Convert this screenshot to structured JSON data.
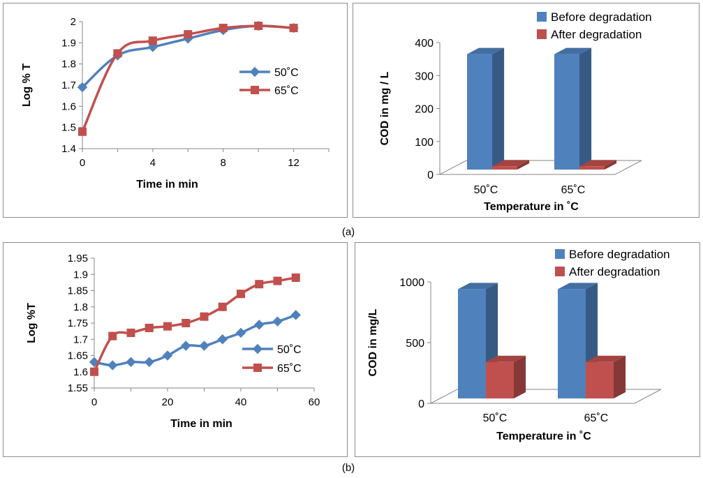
{
  "captions": {
    "a": "(a)",
    "b": "(b)"
  },
  "colors": {
    "blue": "#4f81bd",
    "blue_dark": "#385d8a",
    "red": "#c0504d",
    "red_dark": "#8c3836",
    "axis": "#868686",
    "floor_fill": "#ffffff"
  },
  "chart_data": [
    {
      "id": "a-line",
      "type": "line",
      "title": "",
      "xlabel": "Time in min",
      "ylabel": "Log % T",
      "xlim": [
        0,
        14
      ],
      "ylim": [
        1.4,
        2.0
      ],
      "x_ticks": [
        "0",
        "4",
        "8",
        "12"
      ],
      "x_tick_values": [
        0,
        4,
        8,
        12
      ],
      "y_ticks": [
        "1.4",
        "1.5",
        "1.6",
        "1.7",
        "1.8",
        "1.9",
        "2"
      ],
      "y_tick_values": [
        1.4,
        1.5,
        1.6,
        1.7,
        1.8,
        1.9,
        2.0
      ],
      "legend": "center-right",
      "grid": false,
      "series": [
        {
          "name": "50˚C",
          "color": "#4f81bd",
          "marker": "diamond",
          "x": [
            0,
            2,
            4,
            6,
            8,
            10,
            12
          ],
          "y": [
            1.69,
            1.84,
            1.88,
            1.92,
            1.96,
            1.98,
            1.97
          ]
        },
        {
          "name": "65˚C",
          "color": "#c0504d",
          "marker": "square",
          "x": [
            0,
            2,
            4,
            6,
            8,
            10,
            12
          ],
          "y": [
            1.48,
            1.85,
            1.91,
            1.94,
            1.97,
            1.98,
            1.97
          ]
        }
      ]
    },
    {
      "id": "a-bar",
      "type": "bar",
      "title": "",
      "xlabel": "Temperature in ˚C",
      "ylabel": "COD  in mg / L",
      "categories": [
        "50˚C",
        "65˚C"
      ],
      "ylim": [
        0,
        400
      ],
      "y_ticks": [
        "0",
        "100",
        "200",
        "300",
        "400"
      ],
      "y_tick_values": [
        0,
        100,
        200,
        300,
        400
      ],
      "legend": "top-right",
      "grid": false,
      "series": [
        {
          "name": "Before degradation",
          "color": "#4f81bd",
          "values": [
            350,
            350
          ]
        },
        {
          "name": "After degradation",
          "color": "#c0504d",
          "values": [
            10,
            10
          ]
        }
      ]
    },
    {
      "id": "b-line",
      "type": "line",
      "title": "",
      "xlabel": "Time in min",
      "ylabel": "Log %T",
      "xlim": [
        0,
        60
      ],
      "ylim": [
        1.55,
        1.95
      ],
      "x_ticks": [
        "0",
        "20",
        "40",
        "60"
      ],
      "x_tick_values": [
        0,
        20,
        40,
        60
      ],
      "y_ticks": [
        "1.55",
        "1.6",
        "1.65",
        "1.7",
        "1.75",
        "1.8",
        "1.85",
        "1.9",
        "1.95"
      ],
      "y_tick_values": [
        1.55,
        1.6,
        1.65,
        1.7,
        1.75,
        1.8,
        1.85,
        1.9,
        1.95
      ],
      "legend": "bottom-right",
      "grid": false,
      "series": [
        {
          "name": "50˚C",
          "color": "#4f81bd",
          "marker": "diamond",
          "x": [
            0,
            5,
            10,
            15,
            20,
            25,
            30,
            35,
            40,
            45,
            50,
            55
          ],
          "y": [
            1.63,
            1.62,
            1.63,
            1.63,
            1.65,
            1.68,
            1.68,
            1.7,
            1.72,
            1.745,
            1.755,
            1.775
          ]
        },
        {
          "name": "65˚C",
          "color": "#c0504d",
          "marker": "square",
          "x": [
            0,
            5,
            10,
            15,
            20,
            25,
            30,
            35,
            40,
            45,
            50,
            55
          ],
          "y": [
            1.6,
            1.71,
            1.72,
            1.735,
            1.74,
            1.75,
            1.77,
            1.8,
            1.84,
            1.87,
            1.88,
            1.89
          ]
        }
      ]
    },
    {
      "id": "b-bar",
      "type": "bar",
      "title": "",
      "xlabel": "Temperature in  ˚C",
      "ylabel": "COD  in mg/L",
      "categories": [
        "50˚C",
        "65˚C"
      ],
      "ylim": [
        0,
        1000
      ],
      "y_ticks": [
        "0",
        "500",
        "1000"
      ],
      "y_tick_values": [
        0,
        500,
        1000
      ],
      "legend": "top-right",
      "grid": false,
      "series": [
        {
          "name": "Before degradation",
          "color": "#4f81bd",
          "values": [
            900,
            900
          ]
        },
        {
          "name": "After degradation",
          "color": "#c0504d",
          "values": [
            300,
            300
          ]
        }
      ]
    }
  ]
}
